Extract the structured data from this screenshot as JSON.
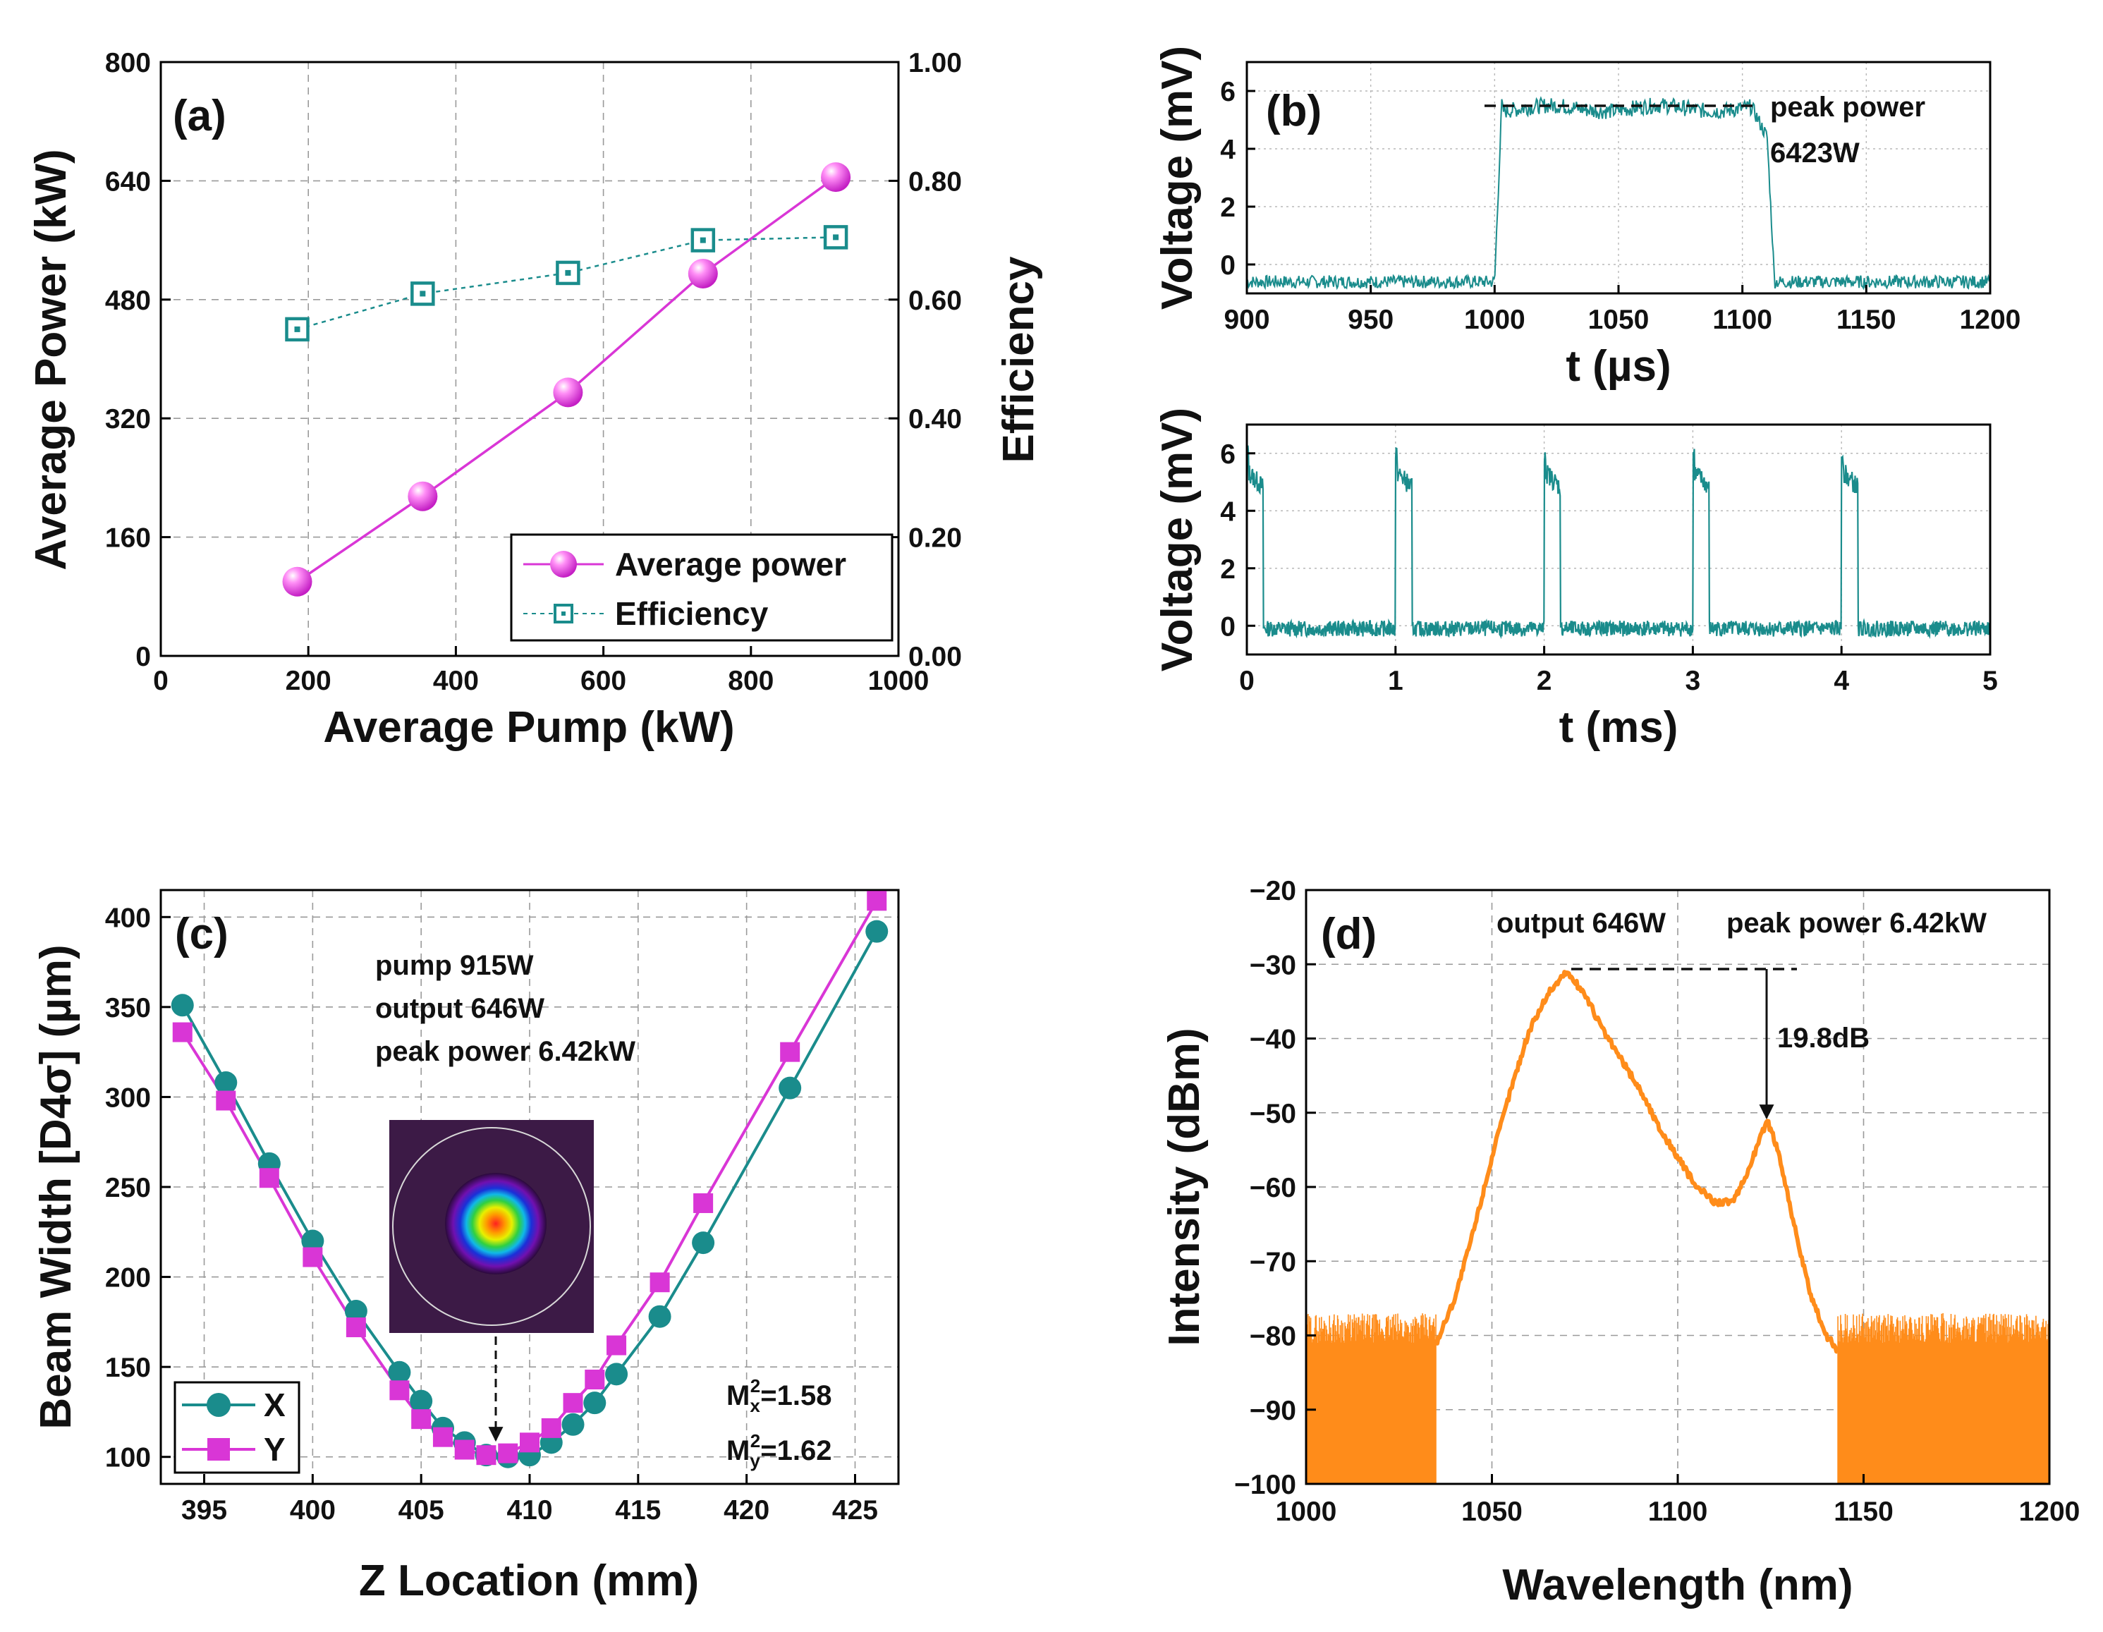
{
  "figure": {
    "panel_labels": [
      "(a)",
      "(b)",
      "(c)",
      "(d)"
    ]
  },
  "colors": {
    "magenta": "#d936d6",
    "teal": "#1a8c8c",
    "orange": "#ff8c1a"
  },
  "chart_data": [
    {
      "id": "a",
      "type": "line",
      "title": "(a)",
      "xlabel": "Average Pump (kW)",
      "ylabel": "Average Power (kW)",
      "y2label": "Efficiency",
      "xlim": [
        0,
        1000
      ],
      "ylim": [
        0,
        800
      ],
      "y2lim": [
        0.0,
        1.0
      ],
      "xticks": [
        "0",
        "200",
        "400",
        "600",
        "800",
        "1000"
      ],
      "yticks": [
        "0",
        "160",
        "320",
        "480",
        "640",
        "800"
      ],
      "y2ticks": [
        "0.00",
        "0.20",
        "0.40",
        "0.60",
        "0.80",
        "1.00"
      ],
      "x": [
        185,
        355,
        552,
        735,
        915
      ],
      "series": [
        {
          "name": "Average power",
          "axis": "left",
          "values": [
            100,
            215,
            355,
            515,
            645
          ]
        },
        {
          "name": "Efficiency",
          "axis": "right",
          "values": [
            0.55,
            0.61,
            0.645,
            0.7,
            0.705
          ]
        }
      ],
      "legend": [
        "Average power",
        "Efficiency"
      ]
    },
    {
      "id": "b-top",
      "type": "line",
      "title": "(b)",
      "xlabel": "t (µs)",
      "ylabel": "Voltage (mV)",
      "xlim": [
        900,
        1200
      ],
      "ylim": [
        -1,
        7
      ],
      "xticks": [
        "900",
        "950",
        "1000",
        "1050",
        "1100",
        "1150",
        "1200"
      ],
      "yticks": [
        "0",
        "2",
        "4",
        "6"
      ],
      "pulse": {
        "start": 1000,
        "end": 1110,
        "high": 5.4,
        "low": -0.6
      },
      "annotations": [
        "peak power",
        "6423W"
      ]
    },
    {
      "id": "b-bottom",
      "type": "line",
      "xlabel": "t (ms)",
      "ylabel": "Voltage (mV)",
      "xlim": [
        0,
        5
      ],
      "ylim": [
        -1,
        7
      ],
      "xticks": [
        "0",
        "1",
        "2",
        "3",
        "4",
        "5"
      ],
      "yticks": [
        "0",
        "2",
        "4",
        "6"
      ],
      "pulses": [
        0,
        1,
        2,
        3,
        4
      ],
      "pulse_width": 0.11,
      "high": 5.4,
      "low": -0.1
    },
    {
      "id": "c",
      "type": "scatter",
      "title": "(c)",
      "xlabel": "Z Location (mm)",
      "ylabel": "Beam Width [D4σ] (µm)",
      "xlim": [
        393,
        427
      ],
      "ylim": [
        85,
        415
      ],
      "xticks": [
        "395",
        "400",
        "405",
        "410",
        "415",
        "420",
        "425"
      ],
      "yticks": [
        "100",
        "150",
        "200",
        "250",
        "300",
        "350",
        "400"
      ],
      "series": [
        {
          "name": "X",
          "x": [
            394,
            396,
            398,
            400,
            402,
            404,
            405,
            406,
            407,
            408,
            409,
            410,
            411,
            412,
            413,
            414,
            416,
            418,
            422,
            426
          ],
          "values": [
            351,
            308,
            263,
            220,
            181,
            147,
            131,
            116,
            108,
            101,
            100,
            101,
            108,
            118,
            130,
            146,
            178,
            219,
            305,
            392
          ]
        },
        {
          "name": "Y",
          "x": [
            394,
            396,
            398,
            400,
            402,
            404,
            405,
            406,
            407,
            408,
            409,
            410,
            411,
            412,
            413,
            414,
            416,
            418,
            422,
            426
          ],
          "values": [
            336,
            298,
            255,
            211,
            172,
            137,
            121,
            111,
            104,
            101,
            102,
            108,
            116,
            130,
            143,
            162,
            197,
            241,
            325,
            409
          ]
        }
      ],
      "annotations": [
        "pump 915W",
        "output 646W",
        "peak power 6.42kW"
      ],
      "mx": "M",
      "mx_sub": "x",
      "mx_sup": "2",
      "mx_val": "=1.58",
      "my": "M",
      "my_sub": "y",
      "my_sup": "2",
      "my_val": "=1.62",
      "legend": [
        "X",
        "Y"
      ]
    },
    {
      "id": "d",
      "type": "line",
      "title": "(d)",
      "xlabel": "Wavelength (nm)",
      "ylabel": "Intensity (dBm)",
      "xlim": [
        1000,
        1200
      ],
      "ylim": [
        -100,
        -20
      ],
      "xticks": [
        "1000",
        "1050",
        "1100",
        "1150",
        "1200"
      ],
      "yticks": [
        "-20",
        "-30",
        "-40",
        "-50",
        "-60",
        "-70",
        "-80",
        "-90",
        "-100"
      ],
      "spectrum_x": [
        1035,
        1040,
        1045,
        1050,
        1055,
        1060,
        1065,
        1070,
        1075,
        1080,
        1085,
        1090,
        1095,
        1100,
        1105,
        1110,
        1115,
        1118,
        1121,
        1124,
        1127,
        1130,
        1133,
        1136,
        1140,
        1143
      ],
      "spectrum_y": [
        -81,
        -75,
        -66,
        -56,
        -47,
        -39,
        -34,
        -31,
        -34,
        -39,
        -43,
        -47,
        -52,
        -56,
        -60,
        -62,
        -62,
        -59,
        -55,
        -51,
        -55,
        -62,
        -69,
        -75,
        -80,
        -82
      ],
      "noise_floor": -85,
      "annotations": [
        "output 646W",
        "peak power 6.42kW",
        "19.8dB"
      ]
    }
  ]
}
